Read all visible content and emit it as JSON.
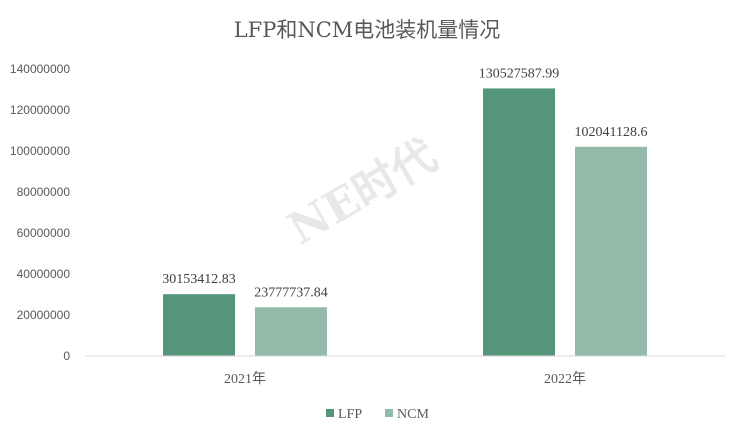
{
  "watermark": "NE时代",
  "colors": {
    "LFP": "#55967a",
    "NCM": "#93baa9",
    "axis": "#d9d9d9"
  },
  "chart_data": {
    "type": "bar",
    "title": "LFP和NCM电池装机量情况",
    "xlabel": "",
    "ylabel": "",
    "categories": [
      "2021年",
      "2022年"
    ],
    "series": [
      {
        "name": "LFP",
        "values": [
          30153412.83,
          130527587.99
        ],
        "labels": [
          "30153412.83",
          "130527587.99"
        ]
      },
      {
        "name": "NCM",
        "values": [
          23777737.84,
          102041128.6
        ],
        "labels": [
          "23777737.84",
          "102041128.6"
        ]
      }
    ],
    "ylim": [
      0,
      140000000
    ],
    "yticks": [
      "0",
      "20000000",
      "40000000",
      "60000000",
      "80000000",
      "100000000",
      "120000000",
      "140000000"
    ],
    "grid": false,
    "legend": "bottom"
  }
}
